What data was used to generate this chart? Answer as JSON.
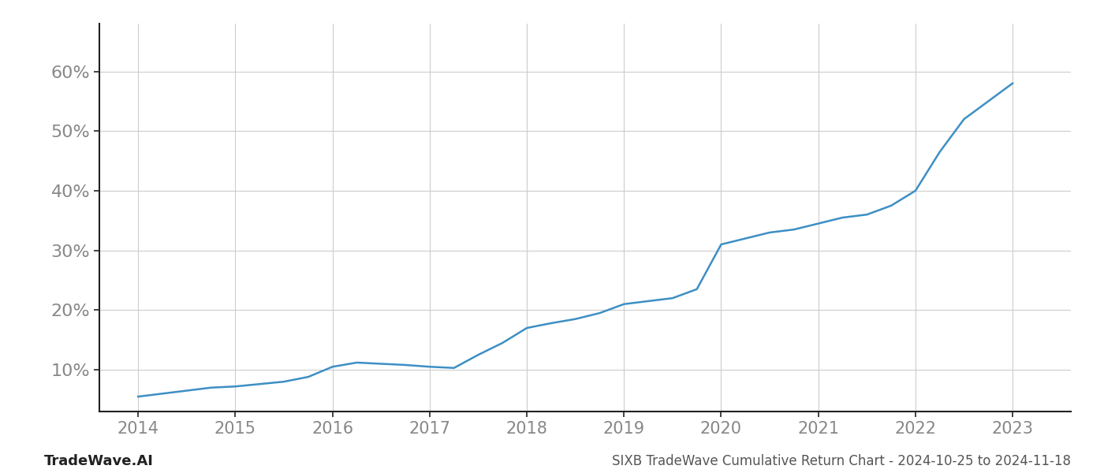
{
  "x": [
    2014.0,
    2014.25,
    2014.5,
    2014.75,
    2015.0,
    2015.25,
    2015.5,
    2015.75,
    2016.0,
    2016.25,
    2016.5,
    2016.75,
    2017.0,
    2017.25,
    2017.5,
    2017.75,
    2018.0,
    2018.25,
    2018.5,
    2018.75,
    2019.0,
    2019.25,
    2019.5,
    2019.75,
    2020.0,
    2020.25,
    2020.5,
    2020.75,
    2021.0,
    2021.25,
    2021.5,
    2021.75,
    2022.0,
    2022.25,
    2022.5,
    2022.75,
    2023.0
  ],
  "y": [
    5.5,
    6.0,
    6.5,
    7.0,
    7.2,
    7.6,
    8.0,
    8.8,
    10.5,
    11.2,
    11.0,
    10.8,
    10.5,
    10.3,
    12.5,
    14.5,
    17.0,
    17.8,
    18.5,
    19.5,
    21.0,
    21.5,
    22.0,
    23.5,
    31.0,
    32.0,
    33.0,
    33.5,
    34.5,
    35.5,
    36.0,
    37.5,
    40.0,
    46.5,
    52.0,
    55.0,
    58.0
  ],
  "line_color": "#3d8fc4",
  "line_width": 1.8,
  "background_color": "#ffffff",
  "grid_color": "#cccccc",
  "title": "SIXB TradeWave Cumulative Return Chart - 2024-10-25 to 2024-11-18",
  "title_fontsize": 12,
  "watermark": "TradeWave.AI",
  "watermark_fontsize": 13,
  "yticks": [
    10,
    20,
    30,
    40,
    50,
    60
  ],
  "xticks": [
    2014,
    2015,
    2016,
    2017,
    2018,
    2019,
    2020,
    2021,
    2022,
    2023
  ],
  "ylim": [
    3,
    68
  ],
  "xlim": [
    2013.6,
    2023.6
  ],
  "tick_fontsize": 16,
  "xtick_fontsize": 15
}
